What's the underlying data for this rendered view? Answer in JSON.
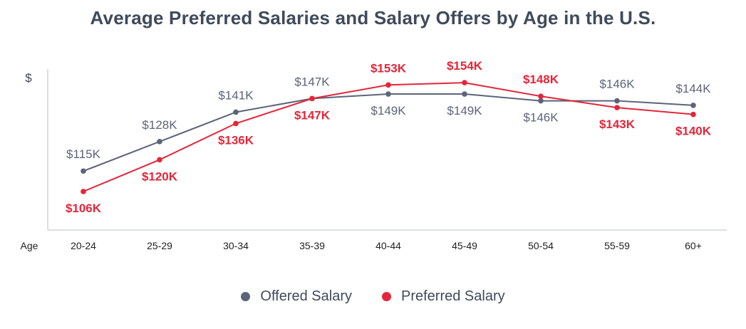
{
  "colors": {
    "offered": "#5c6479",
    "preferred": "#e3263a",
    "axis": "#b9bec8",
    "text": "#3f4a5c"
  },
  "chart_data": {
    "type": "line",
    "title": "Average Preferred Salaries and Salary Offers by Age in the U.S.",
    "ylabel": "$",
    "xlabel": "Age",
    "categories": [
      "20-24",
      "25-29",
      "30-34",
      "35-39",
      "40-44",
      "45-49",
      "50-54",
      "55-59",
      "60+"
    ],
    "ylim": [
      89,
      160
    ],
    "grid": false,
    "legend_position": "bottom-center",
    "series": [
      {
        "name": "Offered Salary",
        "values": [
          115,
          128,
          141,
          147,
          149,
          149,
          146,
          146,
          144
        ],
        "labels": [
          "$115K",
          "$128K",
          "$141K",
          "$147K",
          "$149K",
          "$149K",
          "$146K",
          "$146K",
          "$144K"
        ],
        "label_side": [
          "above",
          "above",
          "above",
          "above",
          "below",
          "below",
          "below",
          "above",
          "above"
        ]
      },
      {
        "name": "Preferred Salary",
        "values": [
          106,
          120,
          136,
          147,
          153,
          154,
          148,
          143,
          140
        ],
        "labels": [
          "$106K",
          "$120K",
          "$136K",
          "$147K",
          "$153K",
          "$154K",
          "$148K",
          "$143K",
          "$140K"
        ],
        "label_side": [
          "below",
          "below",
          "below",
          "below",
          "above",
          "above",
          "above",
          "below",
          "below"
        ]
      }
    ]
  }
}
